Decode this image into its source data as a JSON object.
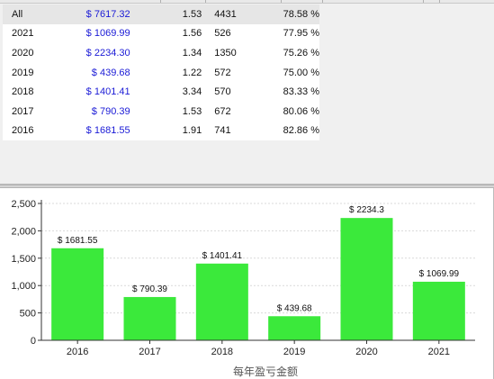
{
  "table": {
    "rows": [
      {
        "year": "All",
        "amount": "$ 7617.32",
        "ratio": "1.53",
        "count": "4431",
        "rate": "78.58 %"
      },
      {
        "year": "2021",
        "amount": "$ 1069.99",
        "ratio": "1.56",
        "count": "526",
        "rate": "77.95 %"
      },
      {
        "year": "2020",
        "amount": "$ 2234.30",
        "ratio": "1.34",
        "count": "1350",
        "rate": "75.26 %"
      },
      {
        "year": "2019",
        "amount": "$ 439.68",
        "ratio": "1.22",
        "count": "572",
        "rate": "75.00 %"
      },
      {
        "year": "2018",
        "amount": "$ 1401.41",
        "ratio": "3.34",
        "count": "570",
        "rate": "83.33 %"
      },
      {
        "year": "2017",
        "amount": "$ 790.39",
        "ratio": "1.53",
        "count": "672",
        "rate": "80.06 %"
      },
      {
        "year": "2016",
        "amount": "$ 1681.55",
        "ratio": "1.91",
        "count": "741",
        "rate": "82.86 %"
      }
    ]
  },
  "colors": {
    "bar": "#3be93b",
    "amount_text": "#1a1ad6",
    "grid": "#d9d9d9"
  },
  "chart_data": {
    "type": "bar",
    "categories": [
      "2016",
      "2017",
      "2018",
      "2019",
      "2020",
      "2021"
    ],
    "values": [
      1681.55,
      790.39,
      1401.41,
      439.68,
      2234.3,
      1069.99
    ],
    "data_labels": [
      "$ 1681.55",
      "$ 790.39",
      "$ 1401.41",
      "$ 439.68",
      "$ 2234.3",
      "$ 1069.99"
    ],
    "xlabel": "每年盈亏金额",
    "ylabel": "",
    "ylim": [
      0,
      2500
    ],
    "yticks": [
      0,
      500,
      1000,
      1500,
      2000,
      2500
    ],
    "ytick_labels": [
      "0",
      "500",
      "1,000",
      "1,500",
      "2,000",
      "2,500"
    ],
    "grid": true,
    "legend": "none"
  }
}
